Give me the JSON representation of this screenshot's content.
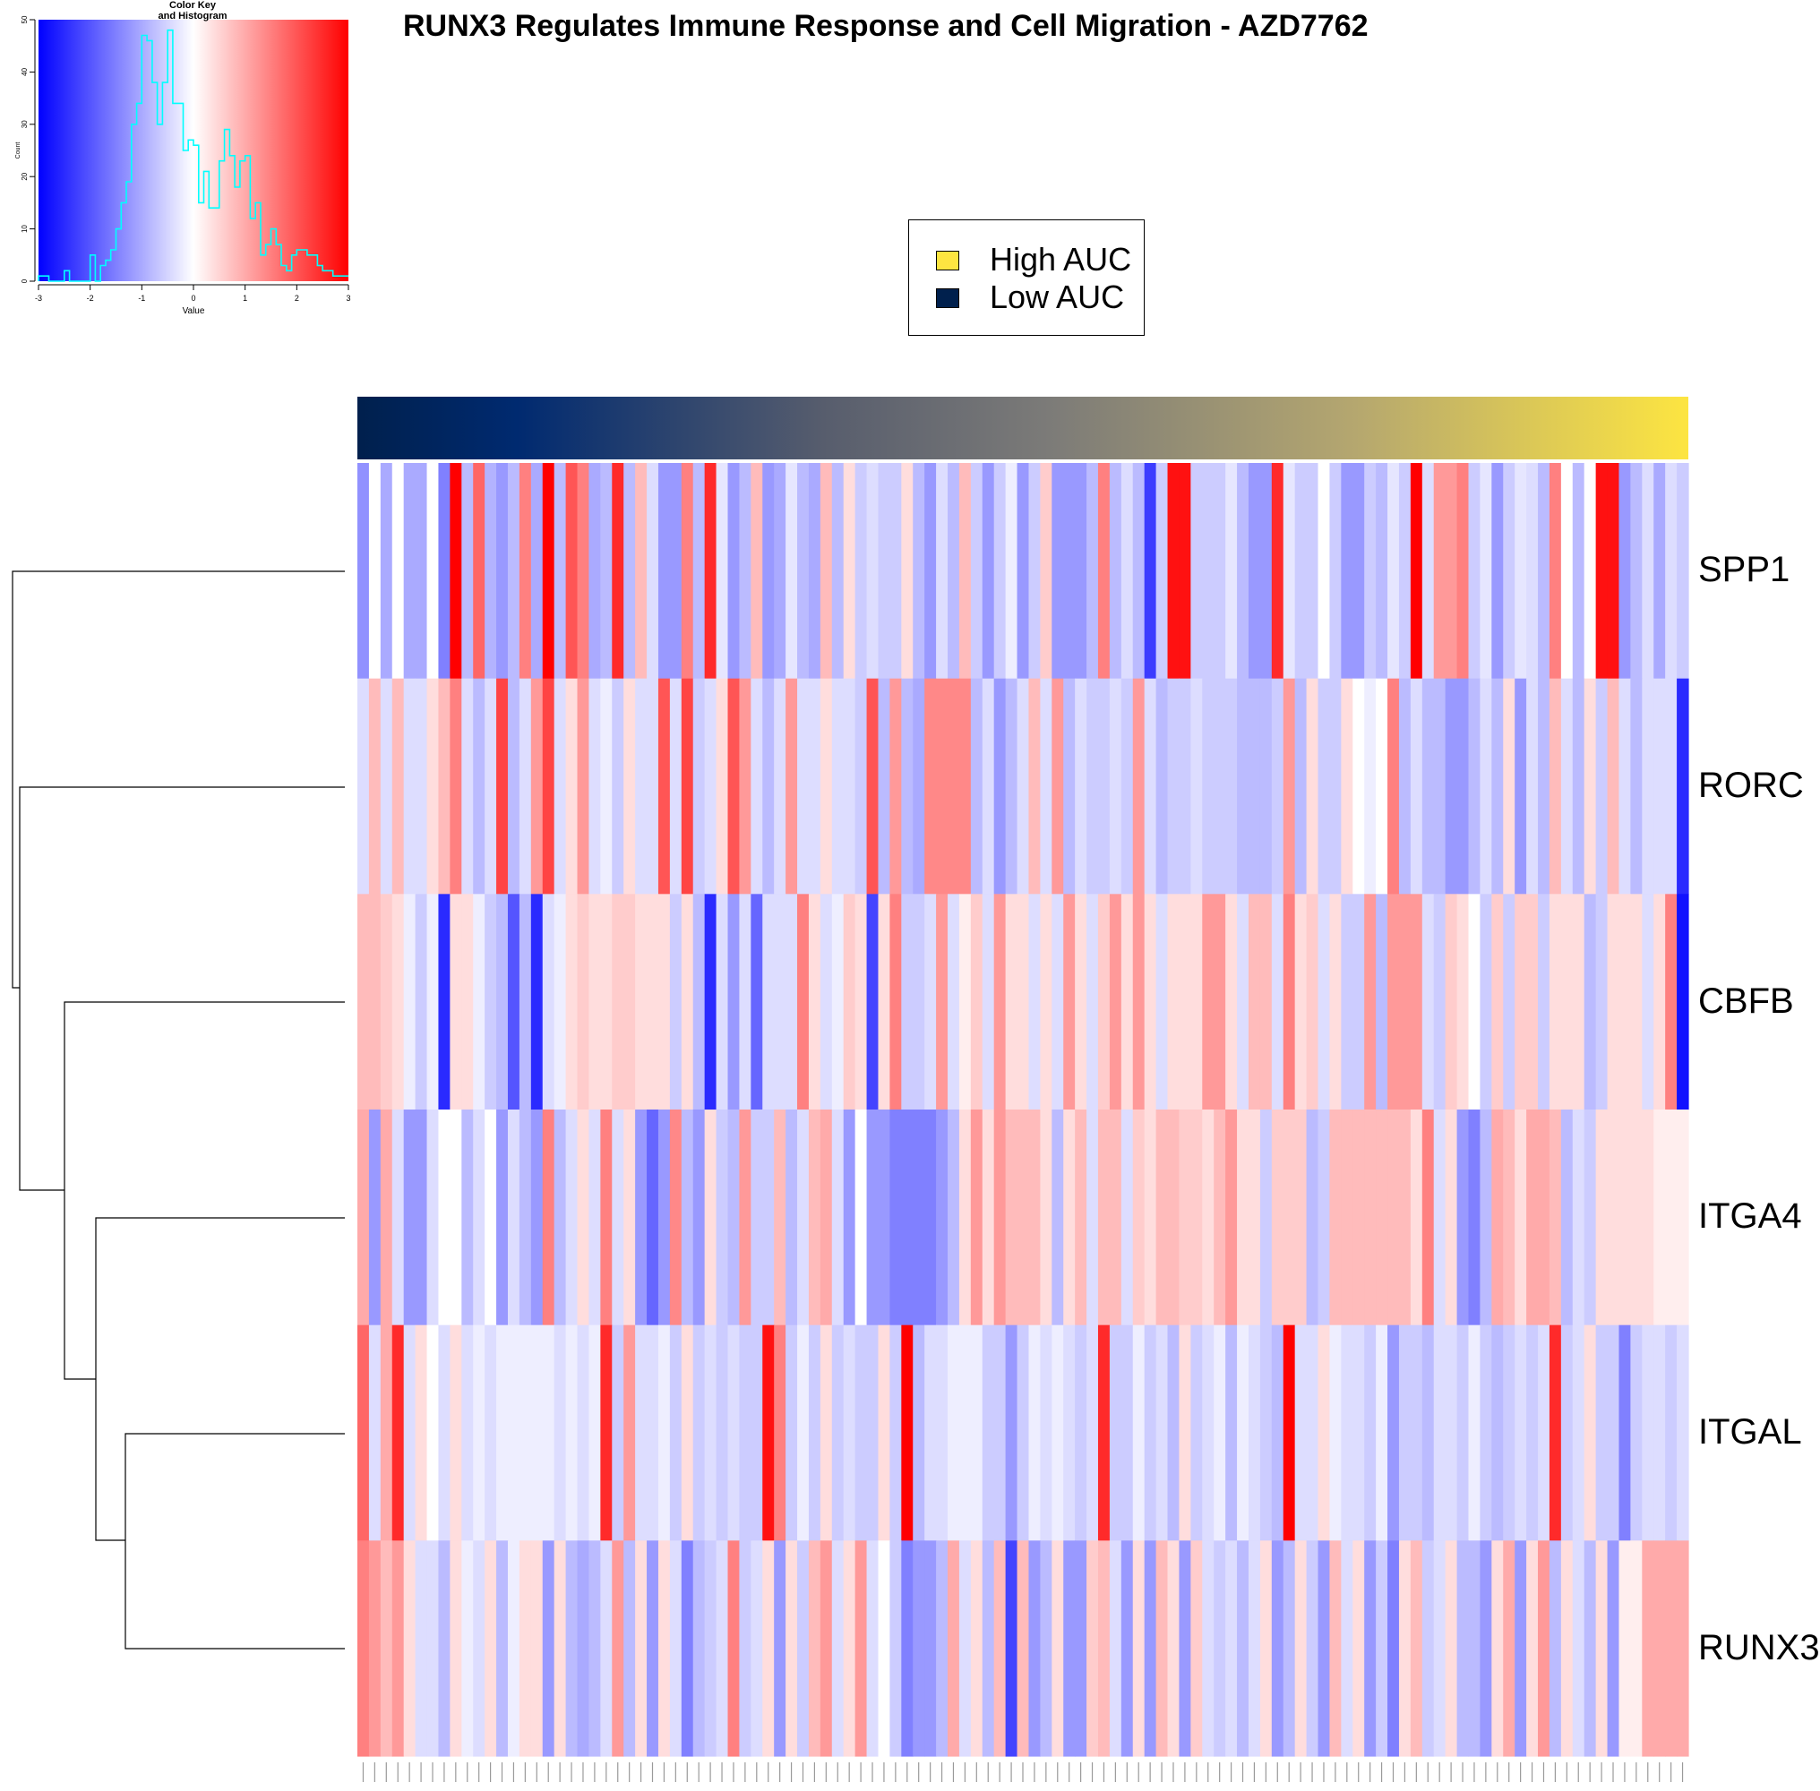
{
  "title": "RUNX3 Regulates Immune Response and Cell Migration - AZD7762",
  "legend": {
    "items": [
      {
        "label": "High AUC",
        "color": "#FDE541"
      },
      {
        "label": "Low AUC",
        "color": "#00204D"
      }
    ]
  },
  "colors": {
    "low": "#0000FF",
    "mid": "#FFFFFF",
    "high": "#FF0000",
    "histogram_line": "#00FFFF",
    "auc_low": "#00204D",
    "auc_mid": "#7C7B78",
    "auc_high": "#FDE541"
  },
  "chart_data": [
    {
      "type": "histogram",
      "title": "Color Key\nand Histogram",
      "xlabel": "Value",
      "ylabel": "Count",
      "xlim": [
        -3,
        3
      ],
      "ylim": [
        0,
        50
      ],
      "x_ticks": [
        "-3",
        "-2",
        "-1",
        "0",
        "1",
        "2",
        "3"
      ],
      "y_ticks": [
        "0",
        "10",
        "20",
        "30",
        "40",
        "50"
      ],
      "bin_start": -3,
      "bin_width": 0.1,
      "counts": [
        1,
        1,
        0,
        0,
        0,
        2,
        0,
        0,
        0,
        0,
        5,
        0,
        3,
        4,
        6,
        10,
        15,
        19,
        30,
        34,
        47,
        46,
        38,
        30,
        38,
        48,
        34,
        34,
        25,
        27,
        26,
        15,
        21,
        14,
        14,
        23,
        29,
        24,
        18,
        23,
        24,
        12,
        15,
        5,
        7,
        10,
        7,
        3,
        2,
        5,
        6,
        6,
        5,
        5,
        3,
        2,
        2,
        1,
        1,
        1
      ]
    },
    {
      "type": "heatmap",
      "rows": [
        "SPP1",
        "RORC",
        "CBFB",
        "ITGA4",
        "ITGAL",
        "RUNX3"
      ],
      "n_columns": 115,
      "column_color_bar": "AUC gradient from Low AUC (left) to High AUC (right)",
      "value_range": [
        -3,
        3
      ],
      "dendrogram": "rows clustered: SPP1 | (RORC | (CBFB | (ITGA4 | (ITGAL, RUNX3))))",
      "values": [
        [
          -1.3,
          0,
          -1,
          0,
          -1,
          -1,
          0,
          -1.5,
          3,
          -0.8,
          1.8,
          -0.9,
          -1.2,
          -0.8,
          1.5,
          -1,
          3,
          -0.8,
          2,
          1.5,
          -1,
          -0.8,
          2.5,
          -0.8,
          0.8,
          -0.4,
          -1.2,
          -1.2,
          1.5,
          -0.8,
          2.5,
          -0.3,
          -1.2,
          -0.8,
          0.8,
          -1.2,
          -1,
          -0.3,
          -0.8,
          -1,
          0.8,
          -0.8,
          0.4,
          -0.6,
          -0.4,
          -0.6,
          -0.6,
          0.4,
          -0.8,
          -1.2,
          -0.4,
          -0.8,
          0.8,
          -0.6,
          -1.2,
          -0.6,
          -0.2,
          -1.2,
          -0.6,
          0.6,
          -1.2,
          -1.2,
          -1.2,
          -0.8,
          1.5,
          -0.8,
          -0.4,
          -0.8,
          -2.3,
          -0.6,
          2.8,
          2.8,
          -0.6,
          -0.6,
          -0.6,
          -0.3,
          -0.8,
          -1.2,
          -1.2,
          2.5,
          -0.3,
          -0.6,
          -0.6,
          0,
          -0.6,
          -1.2,
          -1.2,
          -0.6,
          -0.8,
          -0.3,
          -0.6,
          3,
          -0.4,
          1.2,
          1.2,
          1.5,
          -0.6,
          -0.3,
          -1.2,
          -0.6,
          -0.3,
          -0.4,
          -0.8,
          1.5,
          0,
          -0.8,
          0,
          2.8,
          2.8,
          -1.2,
          -0.8,
          -0.4,
          -1,
          -0.4,
          -0.6
        ],
        [
          -0.4,
          0.8,
          -0.4,
          0.8,
          -0.4,
          -0.4,
          0.4,
          0.8,
          1.5,
          -0.4,
          -0.8,
          -0.4,
          2.2,
          -0.8,
          -0.4,
          1.2,
          2.2,
          -0.4,
          0.4,
          1.2,
          -0.4,
          -0.2,
          -0.6,
          0.4,
          -0.4,
          -0.4,
          2,
          -0.4,
          2.2,
          -0.6,
          -0.4,
          0.4,
          2,
          1.2,
          -0.4,
          -0.8,
          -0.4,
          1.2,
          -0.4,
          -0.4,
          0.4,
          -0.4,
          -0.4,
          -0.6,
          2,
          -0.8,
          1.2,
          -0.8,
          -1,
          1.4,
          1.4,
          1.4,
          1.4,
          -0.8,
          -0.4,
          -1.2,
          -0.8,
          -0.4,
          0.8,
          -0.4,
          1.2,
          -0.8,
          -0.4,
          -0.6,
          -0.6,
          -0.4,
          -0.6,
          1.2,
          -0.4,
          -0.8,
          -0.6,
          -0.6,
          -0.4,
          -0.6,
          -0.6,
          -0.6,
          -0.8,
          -0.8,
          -0.8,
          -0.6,
          1.2,
          -0.8,
          0.4,
          -0.6,
          -0.6,
          0.4,
          0,
          -0.2,
          0,
          1.5,
          -0.8,
          -0.4,
          -0.8,
          -0.8,
          -1.2,
          -1.2,
          -0.8,
          -0.4,
          -0.8,
          0.4,
          -1.2,
          -0.4,
          -0.8,
          0.8,
          -0.4,
          -0.8,
          0.4,
          -0.6,
          0.8,
          -0.4,
          -0.8,
          -0.4,
          -0.4,
          -0.4,
          -2.5
        ],
        [
          0.8,
          0.8,
          0.6,
          0.4,
          -0.2,
          -0.6,
          -0.2,
          -2.5,
          0.4,
          0.4,
          -0.2,
          -0.6,
          -0.8,
          -2,
          -0.8,
          -2.5,
          -0.4,
          -0.2,
          0.4,
          0.6,
          0.4,
          0.4,
          0.6,
          0.6,
          0.4,
          0.4,
          0.4,
          -0.6,
          0.4,
          -0.8,
          -2.5,
          -0.4,
          -1.2,
          -0.4,
          -1.8,
          -0.4,
          -0.4,
          -0.4,
          1.5,
          0.4,
          -0.4,
          -0.2,
          0.6,
          0.4,
          -2.2,
          0.4,
          1.5,
          -0.6,
          -0.6,
          -0.4,
          1.2,
          -0.4,
          0.2,
          0.6,
          -0.4,
          1.2,
          0.4,
          0.4,
          -0.4,
          0.4,
          -0.4,
          1.2,
          0.4,
          -0.4,
          0.6,
          1.2,
          0.4,
          1.2,
          0.4,
          -0.4,
          0.4,
          0.4,
          0.4,
          1.2,
          1.2,
          0.4,
          -0.4,
          0.8,
          0.8,
          -0.4,
          1.5,
          0.4,
          0.6,
          -0.4,
          0.4,
          -0.6,
          -0.6,
          1.2,
          -0.8,
          1.2,
          1.2,
          1.2,
          -0.4,
          -0.6,
          0.6,
          0.4,
          0,
          -0.6,
          0.6,
          -0.6,
          0.6,
          0.6,
          -0.6,
          0.4,
          0.4,
          0.4,
          -0.8,
          -0.6,
          0.4,
          0.4,
          0.4,
          -0.4,
          0.4,
          1.5,
          -2.8
        ],
        [
          1,
          -1.2,
          1,
          -0.4,
          -1.2,
          -1.2,
          -0.4,
          0,
          0,
          -0.8,
          -0.4,
          0,
          -1.2,
          -0.4,
          -0.8,
          -1.2,
          1.5,
          -0.8,
          -0.4,
          0.4,
          -0.4,
          1.5,
          -0.4,
          0.4,
          -1.2,
          -1.8,
          -1.2,
          1.4,
          -0.8,
          -1.2,
          0.4,
          -0.6,
          -0.8,
          1.2,
          -0.6,
          -0.6,
          0.8,
          -0.8,
          -0.4,
          0.8,
          1,
          -0.4,
          -1.2,
          0,
          -1.2,
          -1.2,
          -1.5,
          -1.5,
          -1.5,
          -1.5,
          -1.2,
          -0.8,
          0.4,
          1.2,
          0.4,
          1.2,
          0.8,
          0.8,
          0.8,
          0.4,
          -0.8,
          0.4,
          0.8,
          -0.4,
          0.8,
          0.8,
          -0.4,
          0.6,
          0.4,
          0.8,
          0.8,
          0.6,
          0.6,
          0.4,
          0.8,
          1.2,
          0.4,
          0.4,
          -0.6,
          0.6,
          0.6,
          0.6,
          -0.8,
          -0.6,
          0.8,
          0.8,
          0.8,
          0.8,
          0.8,
          0.8,
          0.8,
          0.4,
          1.5,
          -0.4,
          0.4,
          -1.2,
          -1.5,
          -0.8,
          1,
          0.8,
          0.4,
          1,
          1,
          0.8,
          -0.8,
          -0.4,
          -0.6,
          0.4,
          0.4,
          0.4,
          0.4,
          0.4,
          0.2,
          0.2,
          0.2
        ],
        [
          1.8,
          -0.4,
          1,
          2.5,
          -0.4,
          0.4,
          0,
          -0.4,
          0.4,
          -0.4,
          -0.2,
          -0.4,
          -0.2,
          -0.2,
          -0.2,
          -0.2,
          -0.2,
          -0.4,
          -0.2,
          -0.4,
          -0.2,
          2.5,
          -0.6,
          1.2,
          -0.4,
          -0.4,
          -0.2,
          -0.6,
          0.4,
          -0.6,
          -0.4,
          -0.6,
          -0.4,
          -0.6,
          -0.6,
          2.8,
          1.5,
          -0.6,
          -0.2,
          -0.6,
          0.4,
          -0.6,
          -0.4,
          -0.6,
          -0.6,
          0.4,
          -0.6,
          3,
          -0.8,
          -0.4,
          -0.4,
          -0.2,
          -0.2,
          -0.2,
          -0.6,
          -0.6,
          -1.2,
          -0.6,
          -0.2,
          -0.4,
          -0.2,
          -0.4,
          -0.6,
          -0.4,
          2.5,
          -0.6,
          -0.6,
          -0.2,
          -0.6,
          -0.4,
          -0.8,
          0.4,
          -0.6,
          -0.4,
          -0.2,
          -0.8,
          -0.2,
          -0.4,
          -0.6,
          -0.8,
          3,
          -0.4,
          -0.4,
          0.4,
          -0.2,
          -0.4,
          -0.4,
          -0.6,
          -0.2,
          -1.2,
          -0.6,
          -0.6,
          -0.8,
          -0.4,
          -0.4,
          -0.6,
          -0.2,
          -0.6,
          -0.8,
          -0.6,
          -0.4,
          -0.6,
          -0.4,
          2.5,
          -0.6,
          -0.4,
          0.4,
          -0.6,
          -0.6,
          -1.5,
          -0.6,
          -0.4,
          -0.4,
          -0.6,
          -0.4
        ],
        [
          1.5,
          1.2,
          0.8,
          1.2,
          0.4,
          -0.4,
          -0.4,
          -0.8,
          0.4,
          -0.2,
          -0.4,
          0.4,
          -0.8,
          -0.2,
          0.4,
          0.4,
          -1.2,
          0.4,
          -0.8,
          -1,
          -0.8,
          -0.4,
          1.2,
          -0.8,
          0.4,
          -1.2,
          0.4,
          -0.4,
          -1.5,
          -0.8,
          -0.6,
          -0.4,
          1.5,
          -0.6,
          -0.4,
          0.4,
          -1.2,
          0.4,
          -0.6,
          0.8,
          1.2,
          -0.4,
          0.4,
          1.2,
          -0.4,
          0,
          -0.6,
          -1.5,
          -1.2,
          -1.2,
          -0.8,
          1,
          -0.4,
          0.4,
          -0.8,
          0.8,
          -2.2,
          0.8,
          -1.2,
          -0.8,
          0.4,
          -1.2,
          -1.2,
          0.6,
          0.8,
          -0.4,
          -1.2,
          0.4,
          -1.2,
          0.8,
          0.4,
          -1.2,
          0.6,
          -0.4,
          -0.6,
          -0.4,
          -0.8,
          -0.4,
          0.4,
          -1.2,
          -0.8,
          0.4,
          -0.6,
          -1.2,
          0.8,
          -0.4,
          0.4,
          -1.2,
          -0.6,
          -1.5,
          0.4,
          0.8,
          -0.6,
          -0.4,
          0.4,
          -0.8,
          -0.8,
          -1.2,
          0.4,
          1,
          -1.2,
          0.4,
          1.2,
          -0.8,
          0.4,
          -0.4,
          -0.8,
          0.4,
          -1.2,
          0.2,
          0.2,
          1,
          1,
          1,
          1
        ]
      ]
    }
  ]
}
